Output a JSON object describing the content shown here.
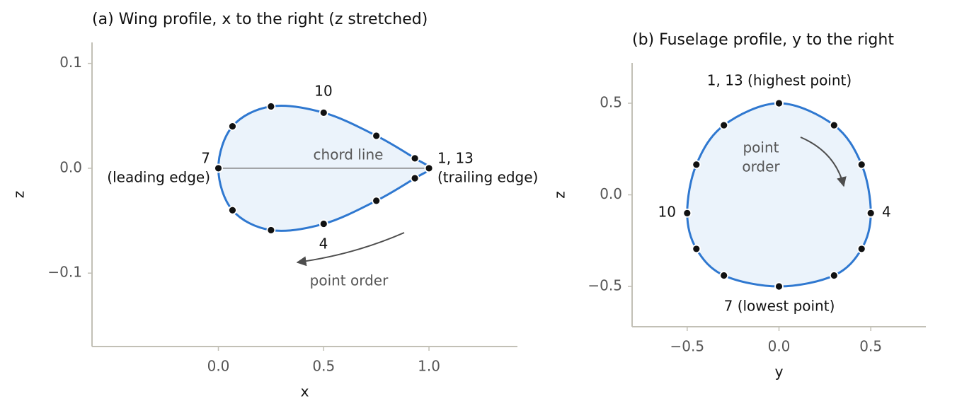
{
  "chart_data": [
    {
      "type": "line",
      "title": "(a) Wing profile, x to the right (z stretched)",
      "xlabel": "x",
      "ylabel": "z",
      "x": [
        1.0,
        0.933,
        0.75,
        0.5,
        0.25,
        0.067,
        0.0,
        0.067,
        0.25,
        0.5,
        0.75,
        0.933,
        1.0
      ],
      "values": [
        0.0,
        -0.0095,
        -0.031,
        -0.053,
        -0.059,
        -0.04,
        0.0,
        0.04,
        0.059,
        0.053,
        0.031,
        0.0095,
        0.0
      ],
      "color": "#2f78d0",
      "fill": "#ebf3fb",
      "marker_color": "#111111",
      "chord": {
        "x": [
          0,
          1
        ],
        "values": [
          0,
          0
        ],
        "color": "#808080"
      },
      "xlim": [
        -0.6,
        1.42
      ],
      "ylim": [
        -0.17,
        0.12
      ],
      "xticks": [
        {
          "value": 0,
          "label": "0.0"
        },
        0.5,
        {
          "value": 1,
          "label": "1.0"
        }
      ],
      "yticks": [
        {
          "value": -0.1,
          "label": "−0.1"
        },
        {
          "value": 0,
          "label": "0.0"
        },
        0.1
      ],
      "annotations": [
        "7",
        "(leading edge)",
        "1, 13",
        "(trailing edge)",
        "10",
        "4",
        "chord line",
        "point order"
      ]
    },
    {
      "type": "line",
      "title": "(b) Fuselage profile, y to the right",
      "xlabel": "y",
      "ylabel": "z",
      "x": [
        0.0,
        0.3,
        0.45,
        0.5,
        0.45,
        0.3,
        0.0,
        -0.3,
        -0.45,
        -0.5,
        -0.45,
        -0.3,
        0.0
      ],
      "values": [
        0.5,
        0.38,
        0.165,
        -0.1,
        -0.295,
        -0.44,
        -0.5,
        -0.44,
        -0.295,
        -0.1,
        0.165,
        0.38,
        0.5
      ],
      "color": "#2f78d0",
      "fill": "#ebf3fb",
      "marker_color": "#111111",
      "xlim": [
        -0.8,
        0.8
      ],
      "ylim": [
        -0.72,
        0.72
      ],
      "xticks": [
        {
          "value": -0.5,
          "label": "−0.5"
        },
        {
          "value": 0,
          "label": "0.0"
        },
        0.5
      ],
      "yticks": [
        {
          "value": -0.5,
          "label": "−0.5"
        },
        {
          "value": 0,
          "label": "0.0"
        },
        0.5
      ],
      "annotations": [
        "1, 13 (highest point)",
        "10",
        "4",
        "7 (lowest point)",
        "point",
        "order"
      ]
    }
  ]
}
